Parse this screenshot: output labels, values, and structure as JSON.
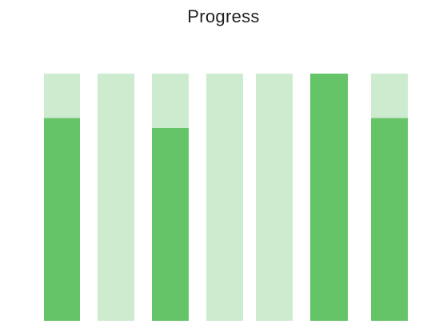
{
  "chart_data": {
    "type": "bar",
    "title": "Progress",
    "xlabel": "",
    "ylabel": "",
    "ylim": [
      0,
      1
    ],
    "grid": false,
    "legend": "none",
    "series": [
      {
        "values": [
          0.82,
          0,
          0.78,
          0,
          0,
          1.0,
          0.82
        ]
      }
    ],
    "colors": {
      "fill": "#66c468",
      "track": "#cdebcf"
    }
  }
}
